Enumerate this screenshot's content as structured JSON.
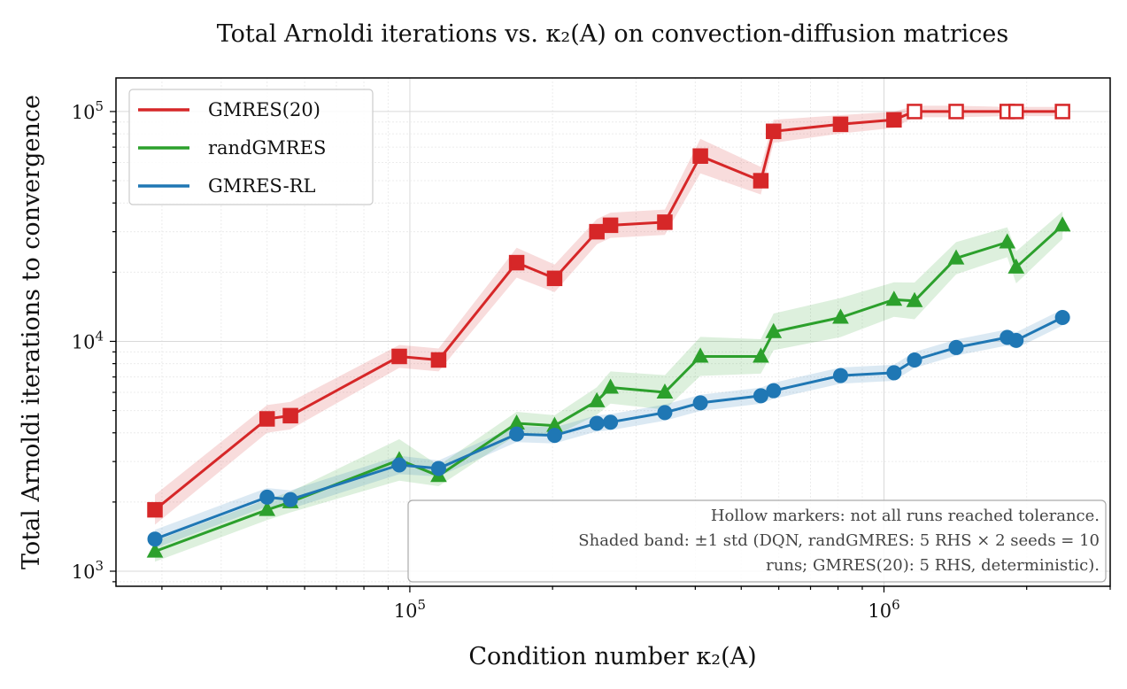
{
  "chart_data": {
    "type": "line",
    "title": "Total Arnoldi iterations vs. κ₂(A) on convection-diffusion matrices",
    "xlabel": "Condition number κ₂(A)",
    "ylabel": "Total Arnoldi iterations to convergence",
    "xscale": "log",
    "yscale": "log",
    "xlim": [
      24000,
      3000000
    ],
    "ylim": [
      860,
      140000
    ],
    "x_ticks": [
      {
        "value": 100000,
        "base": "10",
        "exp": "5"
      },
      {
        "value": 1000000,
        "base": "10",
        "exp": "6"
      }
    ],
    "y_ticks": [
      {
        "value": 1000,
        "base": "10",
        "exp": "3"
      },
      {
        "value": 10000,
        "base": "10",
        "exp": "4"
      },
      {
        "value": 100000,
        "base": "10",
        "exp": "5"
      }
    ],
    "grid": true,
    "legend_position": "top-left",
    "series": [
      {
        "name": "GMRES(20)",
        "color": "#d62728",
        "marker": "square",
        "x": [
          29000,
          50000,
          56000,
          95000,
          115000,
          168000,
          202000,
          248000,
          265000,
          345000,
          410000,
          550000,
          585000,
          810000,
          1050000,
          1160000,
          1420000,
          1820000,
          1900000,
          2380000
        ],
        "y": [
          1850,
          4600,
          4750,
          8600,
          8300,
          22000,
          18800,
          30000,
          32000,
          33000,
          64000,
          50000,
          82000,
          88000,
          92000,
          100000,
          100000,
          100000,
          100000,
          100000
        ],
        "std": [
          0.13,
          0.12,
          0.12,
          0.1,
          0.1,
          0.13,
          0.12,
          0.11,
          0.11,
          0.11,
          0.15,
          0.12,
          0.1,
          0.08,
          0.07,
          0.05,
          0.05,
          0.04,
          0.04,
          0.04
        ],
        "hollow": [
          false,
          false,
          false,
          false,
          false,
          false,
          false,
          false,
          false,
          false,
          false,
          false,
          false,
          false,
          false,
          true,
          true,
          true,
          true,
          true
        ]
      },
      {
        "name": "randGMRES",
        "color": "#2ca02c",
        "marker": "triangle",
        "x": [
          29000,
          50000,
          56000,
          95000,
          115000,
          168000,
          202000,
          248000,
          265000,
          345000,
          410000,
          550000,
          585000,
          810000,
          1050000,
          1160000,
          1420000,
          1820000,
          1900000,
          2380000
        ],
        "y": [
          1220,
          1850,
          2000,
          3050,
          2600,
          4400,
          4300,
          5500,
          6300,
          6000,
          8600,
          8600,
          11000,
          12700,
          15200,
          15000,
          23000,
          27000,
          21000,
          32000
        ],
        "std": [
          0.09,
          0.09,
          0.09,
          0.18,
          0.09,
          0.1,
          0.09,
          0.12,
          0.14,
          0.15,
          0.17,
          0.15,
          0.16,
          0.17,
          0.15,
          0.16,
          0.14,
          0.13,
          0.14,
          0.12
        ]
      },
      {
        "name": "GMRES-RL",
        "color": "#1f77b4",
        "marker": "circle",
        "x": [
          29000,
          50000,
          56000,
          95000,
          115000,
          168000,
          202000,
          248000,
          265000,
          345000,
          410000,
          550000,
          585000,
          810000,
          1050000,
          1160000,
          1420000,
          1820000,
          1900000,
          2380000
        ],
        "y": [
          1380,
          2100,
          2050,
          2900,
          2800,
          3950,
          3900,
          4400,
          4450,
          4900,
          5400,
          5800,
          6100,
          7100,
          7300,
          8300,
          9400,
          10400,
          10100,
          12700
        ],
        "std": [
          0.08,
          0.08,
          0.08,
          0.08,
          0.07,
          0.07,
          0.07,
          0.07,
          0.07,
          0.07,
          0.07,
          0.07,
          0.07,
          0.07,
          0.07,
          0.07,
          0.07,
          0.07,
          0.07,
          0.07
        ]
      }
    ],
    "annotation": [
      "Hollow markers: not all runs reached tolerance.",
      "Shaded band: ±1 std (DQN, randGMRES: 5 RHS × 2 seeds = 10",
      "runs; GMRES(20): 5 RHS, deterministic)."
    ]
  }
}
